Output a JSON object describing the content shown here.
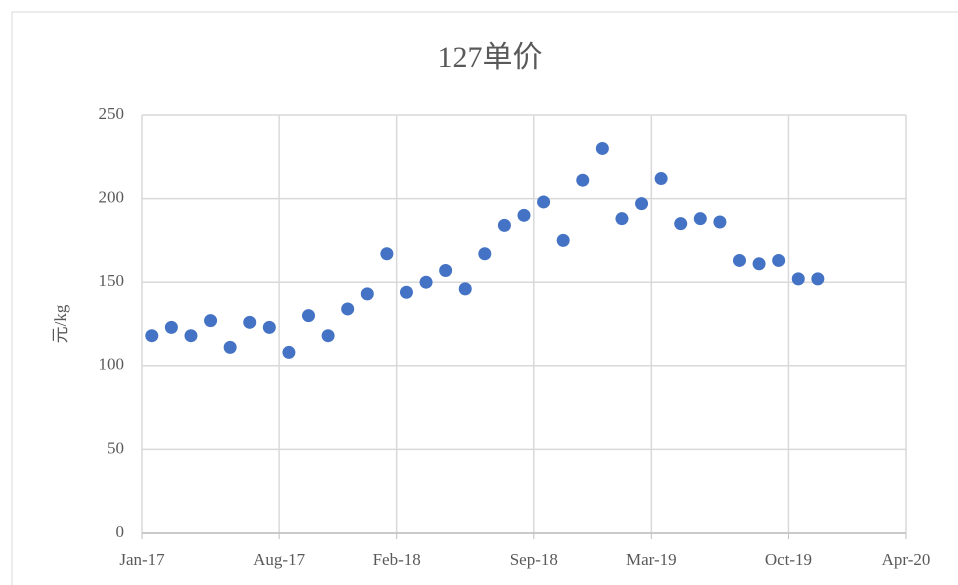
{
  "chart_data": {
    "type": "scatter",
    "title": "127单价",
    "y_label": "元/kg",
    "x": [
      "2017-01",
      "2017-02",
      "2017-03",
      "2017-04",
      "2017-05",
      "2017-06",
      "2017-07",
      "2017-08",
      "2017-09",
      "2017-10",
      "2017-11",
      "2017-12",
      "2018-01",
      "2018-02",
      "2018-03",
      "2018-04",
      "2018-05",
      "2018-06",
      "2018-07",
      "2018-08",
      "2018-09",
      "2018-10",
      "2018-11",
      "2018-12",
      "2019-01",
      "2019-02",
      "2019-03",
      "2019-04",
      "2019-05",
      "2019-06",
      "2019-07",
      "2019-08",
      "2019-09",
      "2019-10",
      "2019-11"
    ],
    "series": [
      {
        "color": "#4472c4",
        "values": [
          118,
          123,
          118,
          127,
          111,
          126,
          123,
          108,
          130,
          118,
          134,
          143,
          167,
          144,
          150,
          157,
          146,
          167,
          184,
          190,
          198,
          175,
          211,
          230,
          188,
          197,
          212,
          185,
          188,
          186,
          163,
          161,
          163,
          152,
          152
        ]
      }
    ],
    "xlim": [
      "2017-01",
      "2020-04"
    ],
    "xticks": [
      {
        "value": "2017-01",
        "label": "Jan-17"
      },
      {
        "value": "2017-08",
        "label": "Aug-17"
      },
      {
        "value": "2018-02",
        "label": "Feb-18"
      },
      {
        "value": "2018-09",
        "label": "Sep-18"
      },
      {
        "value": "2019-03",
        "label": "Mar-19"
      },
      {
        "value": "2019-10",
        "label": "Oct-19"
      },
      {
        "value": "2020-04",
        "label": "Apr-20"
      }
    ],
    "ylim": [
      0,
      250
    ],
    "yticks": [
      0,
      50,
      100,
      150,
      200,
      250
    ],
    "grid": true
  }
}
